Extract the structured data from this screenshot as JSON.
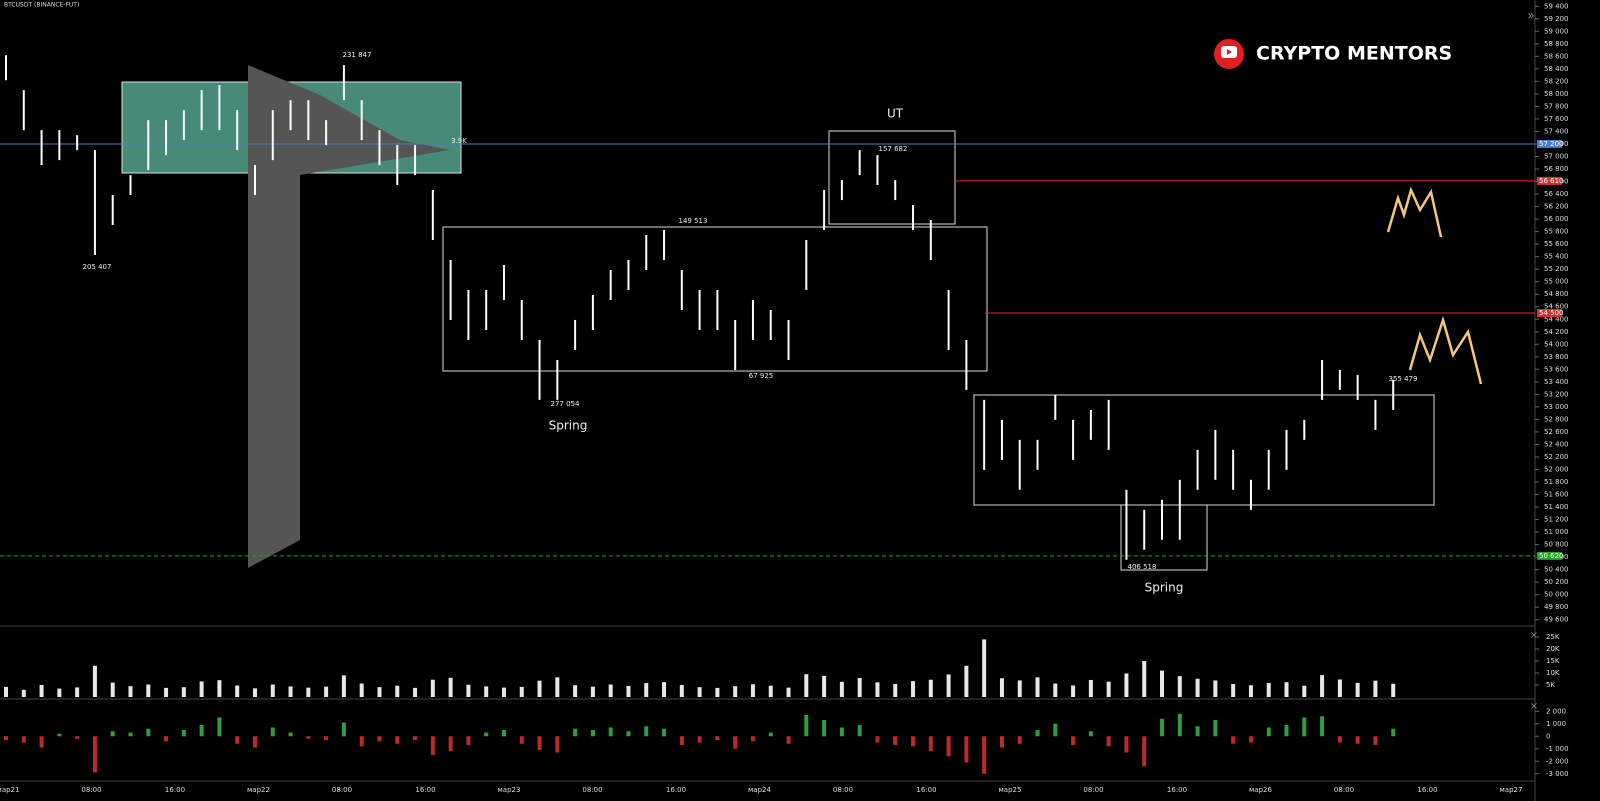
{
  "chart_data": {
    "type": "ohlc-bars",
    "title": "BTCUSDT (BINANCE-FUT)",
    "brand": "CRYPTO MENTORS",
    "annotations": [
      "231 847",
      "205 407",
      "149 513",
      "157 682",
      "277 054",
      "67 925",
      "355 479",
      "406 518",
      "3.9K",
      "UT",
      "Spring",
      "Spring"
    ],
    "high": [
      58618,
      58060,
      57421,
      57421,
      57341,
      57102,
      56384,
      56703,
      57581,
      57581,
      57740,
      58060,
      58139,
      57740,
      56863,
      57740,
      57900,
      57900,
      57581,
      58459,
      57900,
      57421,
      57182,
      57182,
      56464,
      55346,
      54868,
      54868,
      55267,
      54708,
      54070,
      53750,
      54389,
      54788,
      55187,
      55346,
      55745,
      55825,
      55187,
      54868,
      54868,
      54389,
      54708,
      54548,
      54389,
      55666,
      56464,
      56623,
      57102,
      57022,
      56623,
      56224,
      55985,
      54868,
      54070,
      53112,
      52793,
      52473,
      52473,
      53192,
      52793,
      52952,
      53112,
      51676,
      51356,
      51516,
      51835,
      52314,
      52633,
      52314,
      51835,
      52314,
      52633,
      52793,
      53750,
      53591,
      53511,
      53112,
      53431
    ],
    "low": [
      58219,
      57421,
      56863,
      56942,
      57102,
      55426,
      55905,
      56384,
      56783,
      57022,
      57262,
      57421,
      57421,
      57102,
      56384,
      56942,
      57421,
      57262,
      57182,
      57900,
      57262,
      56863,
      56544,
      56703,
      55666,
      54389,
      54070,
      54229,
      54708,
      54070,
      53112,
      53112,
      53910,
      54229,
      54708,
      54868,
      55187,
      55346,
      54548,
      54229,
      54229,
      53591,
      54070,
      54070,
      53750,
      54868,
      55825,
      56304,
      56703,
      56544,
      56304,
      55825,
      55346,
      53910,
      53272,
      51995,
      52154,
      51676,
      51995,
      52793,
      52154,
      52473,
      52314,
      50558,
      50718,
      50878,
      50878,
      51676,
      51835,
      51676,
      51356,
      51676,
      51995,
      52473,
      53112,
      53272,
      53112,
      52633,
      52952
    ],
    "color": "#ffffff",
    "ylim": [
      49500,
      59500
    ],
    "yticks": [
      {
        "value": 49600,
        "label": "49 600"
      },
      {
        "value": 49800,
        "label": "49 800"
      },
      {
        "value": 50000,
        "label": "50 000"
      },
      {
        "value": 50200,
        "label": "50 200"
      },
      {
        "value": 50400,
        "label": "50 400"
      },
      {
        "value": 50600,
        "label": "50 600"
      },
      {
        "value": 50800,
        "label": "50 800"
      },
      {
        "value": 51000,
        "label": "51 000"
      },
      {
        "value": 51200,
        "label": "51 200"
      },
      {
        "value": 51400,
        "label": "51 400"
      },
      {
        "value": 51600,
        "label": "51 600"
      },
      {
        "value": 51800,
        "label": "51 800"
      },
      {
        "value": 52000,
        "label": "52 000"
      },
      {
        "value": 52200,
        "label": "52 200"
      },
      {
        "value": 52400,
        "label": "52 400"
      },
      {
        "value": 52600,
        "label": "52 600"
      },
      {
        "value": 52800,
        "label": "52 800"
      },
      {
        "value": 53000,
        "label": "53 000"
      },
      {
        "value": 53200,
        "label": "53 200"
      },
      {
        "value": 53400,
        "label": "53 400"
      },
      {
        "value": 53600,
        "label": "53 600"
      },
      {
        "value": 53800,
        "label": "53 800"
      },
      {
        "value": 54000,
        "label": "54 000"
      },
      {
        "value": 54200,
        "label": "54 200"
      },
      {
        "value": 54400,
        "label": "54 400"
      },
      {
        "value": 54600,
        "label": "54 600"
      },
      {
        "value": 54800,
        "label": "54 800"
      },
      {
        "value": 55000,
        "label": "55 000"
      },
      {
        "value": 55200,
        "label": "55 200"
      },
      {
        "value": 55400,
        "label": "55 400"
      },
      {
        "value": 55600,
        "label": "55 600"
      },
      {
        "value": 55800,
        "label": "55 800"
      },
      {
        "value": 56000,
        "label": "56 000"
      },
      {
        "value": 56200,
        "label": "56 200"
      },
      {
        "value": 56400,
        "label": "56 400"
      },
      {
        "value": 56600,
        "label": "56 600"
      },
      {
        "value": 56800,
        "label": "56 800"
      },
      {
        "value": 57000,
        "label": "57 000"
      },
      {
        "value": 57200,
        "label": "57 200"
      },
      {
        "value": 57400,
        "label": "57 400"
      },
      {
        "value": 57600,
        "label": "57 600"
      },
      {
        "value": 57800,
        "label": "57 800"
      },
      {
        "value": 58000,
        "label": "58 000"
      },
      {
        "value": 58200,
        "label": "58 200"
      },
      {
        "value": 58400,
        "label": "58 400"
      },
      {
        "value": 58600,
        "label": "58 600"
      },
      {
        "value": 58800,
        "label": "58 800"
      },
      {
        "value": 59000,
        "label": "59 000"
      },
      {
        "value": 59200,
        "label": "59 200"
      },
      {
        "value": 59400,
        "label": "59 400"
      }
    ],
    "levels": [
      {
        "value": 57200,
        "label": "57 200",
        "color": "#4a7fc1"
      },
      {
        "value": 56610,
        "label": "56 610",
        "color": "#d32f2f"
      },
      {
        "value": 54500,
        "label": "54 500",
        "color": "#d32f2f"
      },
      {
        "value": 50620,
        "label": "50 620",
        "color": "#22a722"
      }
    ],
    "time_labels": [
      "мар21",
      "08:00",
      "16:00",
      "мар22",
      "08:00",
      "16:00",
      "мар23",
      "08:00",
      "16:00",
      "мар24",
      "08:00",
      "16:00",
      "мар25",
      "08:00",
      "16:00",
      "мар26",
      "08:00",
      "16:00",
      "мар27"
    ],
    "volume": [
      4200,
      3000,
      5000,
      3500,
      4000,
      13000,
      6000,
      4500,
      5200,
      3800,
      4100,
      6500,
      7000,
      4800,
      3600,
      5200,
      4400,
      3900,
      4300,
      9000,
      5600,
      4100,
      4700,
      3800,
      7200,
      8000,
      5100,
      4400,
      3900,
      4200,
      6800,
      8200,
      4900,
      4300,
      5200,
      4600,
      5800,
      6200,
      5000,
      4100,
      3800,
      4500,
      5300,
      4700,
      3900,
      9500,
      8800,
      6300,
      7900,
      6100,
      5400,
      6600,
      7200,
      9400,
      13000,
      24000,
      7800,
      6900,
      8200,
      5600,
      4800,
      7100,
      6400,
      9800,
      15000,
      11000,
      8700,
      7600,
      6900,
      5400,
      4900,
      5800,
      6200,
      4700,
      9100,
      7300,
      5900,
      6800,
      5500
    ],
    "volume_ylim": [
      0,
      28750
    ],
    "volume_yticks": [
      {
        "value": 5000,
        "label": "5K"
      },
      {
        "value": 10000,
        "label": "10K"
      },
      {
        "value": 15000,
        "label": "15K"
      },
      {
        "value": 20000,
        "label": "20K"
      },
      {
        "value": 25000,
        "label": "25K"
      }
    ],
    "delta": [
      -300,
      -500,
      -900,
      200,
      -200,
      -2900,
      400,
      300,
      600,
      -400,
      500,
      900,
      1500,
      -600,
      -900,
      700,
      300,
      -200,
      -300,
      1100,
      -800,
      -400,
      -600,
      -300,
      -1500,
      -1200,
      -700,
      300,
      500,
      -600,
      -1100,
      -1300,
      600,
      500,
      700,
      400,
      800,
      600,
      -700,
      -500,
      -300,
      -1000,
      -400,
      300,
      -600,
      1700,
      1300,
      700,
      900,
      -500,
      -700,
      -800,
      -1200,
      -1600,
      -2100,
      -3000,
      -900,
      -600,
      500,
      1000,
      -700,
      400,
      -800,
      -1300,
      -2400,
      1400,
      1800,
      800,
      1300,
      -600,
      -500,
      700,
      900,
      1500,
      1600,
      -500,
      -600,
      -700,
      600
    ],
    "delta_ylim": [
      2500,
      -3500
    ],
    "delta_yticks": [
      {
        "value": 2000,
        "label": "2 000"
      },
      {
        "value": 1000,
        "label": "1 000"
      },
      0,
      {
        "value": -1000,
        "label": "-1 000"
      },
      {
        "value": -2000,
        "label": "-2 000"
      },
      {
        "value": -3000,
        "label": "-3 000"
      }
    ],
    "delta_colors": {
      "up": "#2e9e3e",
      "down": "#c0292c"
    }
  }
}
